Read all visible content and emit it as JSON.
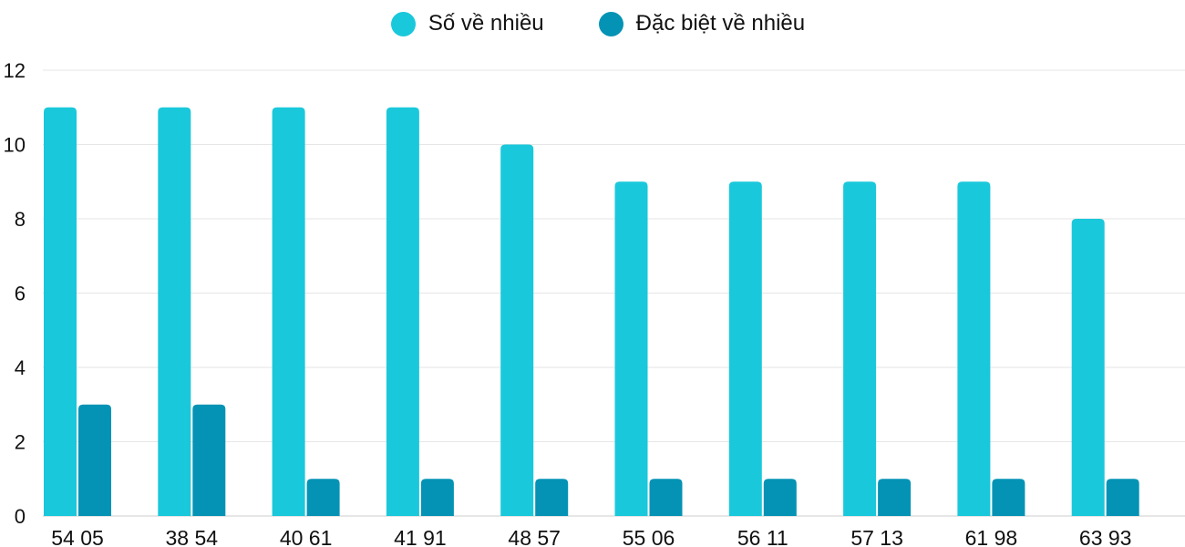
{
  "chart_data": {
    "type": "bar",
    "categories": [
      "54 05",
      "38 54",
      "40 61",
      "41 91",
      "48 57",
      "55 06",
      "56 11",
      "57 13",
      "61 98",
      "63 93"
    ],
    "series": [
      {
        "name": "Số về nhiều",
        "color": "#1ac8db",
        "values": [
          11,
          11,
          11,
          11,
          10,
          9,
          9,
          9,
          9,
          8
        ]
      },
      {
        "name": "Đặc biệt về nhiều",
        "color": "#0493b5",
        "values": [
          3,
          3,
          1,
          1,
          1,
          1,
          1,
          1,
          1,
          1
        ]
      }
    ],
    "ylim": [
      0,
      12
    ],
    "yticks": [
      0,
      2,
      4,
      6,
      8,
      10,
      12
    ],
    "grid": true,
    "legend": "top-center"
  }
}
